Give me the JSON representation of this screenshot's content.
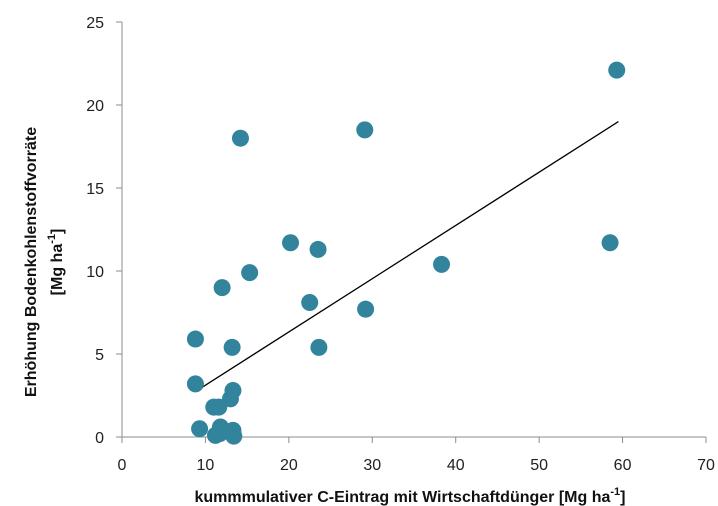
{
  "chart_data": {
    "type": "scatter",
    "title": "",
    "xlabel": "kummmulativer C-Eintrag mit Wirtschaftdünger [Mg ha",
    "xlabel_sup": "-1",
    "xlabel_end": "]",
    "ylabel_line1": "Erhöhung  Bodenkohlenstoffvorräte",
    "ylabel_line2": "[Mg ha",
    "ylabel_line2_sup": "-1",
    "ylabel_line2_end": "]",
    "xlim": [
      0,
      70
    ],
    "ylim": [
      0,
      25
    ],
    "xticks": [
      0,
      10,
      20,
      30,
      40,
      50,
      60,
      70
    ],
    "yticks": [
      0,
      5,
      10,
      15,
      20,
      25
    ],
    "grid": false,
    "legend": "none",
    "marker_color": "#31849B",
    "trendline_color": "#000000",
    "trendline": {
      "x": [
        9,
        59.5
      ],
      "y": [
        2.8,
        19.0
      ]
    },
    "series": [
      {
        "points": [
          {
            "x": 8.8,
            "y": 5.9
          },
          {
            "x": 8.8,
            "y": 3.2
          },
          {
            "x": 9.3,
            "y": 0.5
          },
          {
            "x": 11.0,
            "y": 1.8
          },
          {
            "x": 11.2,
            "y": 0.1
          },
          {
            "x": 11.6,
            "y": 1.8
          },
          {
            "x": 11.7,
            "y": 0.2
          },
          {
            "x": 11.8,
            "y": 0.6
          },
          {
            "x": 12.0,
            "y": 9.0
          },
          {
            "x": 13.0,
            "y": 2.3
          },
          {
            "x": 13.2,
            "y": 5.4
          },
          {
            "x": 13.3,
            "y": 2.8
          },
          {
            "x": 13.3,
            "y": 0.4
          },
          {
            "x": 13.4,
            "y": 0.05
          },
          {
            "x": 14.2,
            "y": 18.0
          },
          {
            "x": 15.3,
            "y": 9.9
          },
          {
            "x": 20.2,
            "y": 11.7
          },
          {
            "x": 22.5,
            "y": 8.1
          },
          {
            "x": 23.5,
            "y": 11.3
          },
          {
            "x": 23.6,
            "y": 5.4
          },
          {
            "x": 29.1,
            "y": 18.5
          },
          {
            "x": 29.2,
            "y": 7.7
          },
          {
            "x": 38.3,
            "y": 10.4
          },
          {
            "x": 58.5,
            "y": 11.7
          },
          {
            "x": 59.3,
            "y": 22.1
          }
        ]
      }
    ]
  }
}
